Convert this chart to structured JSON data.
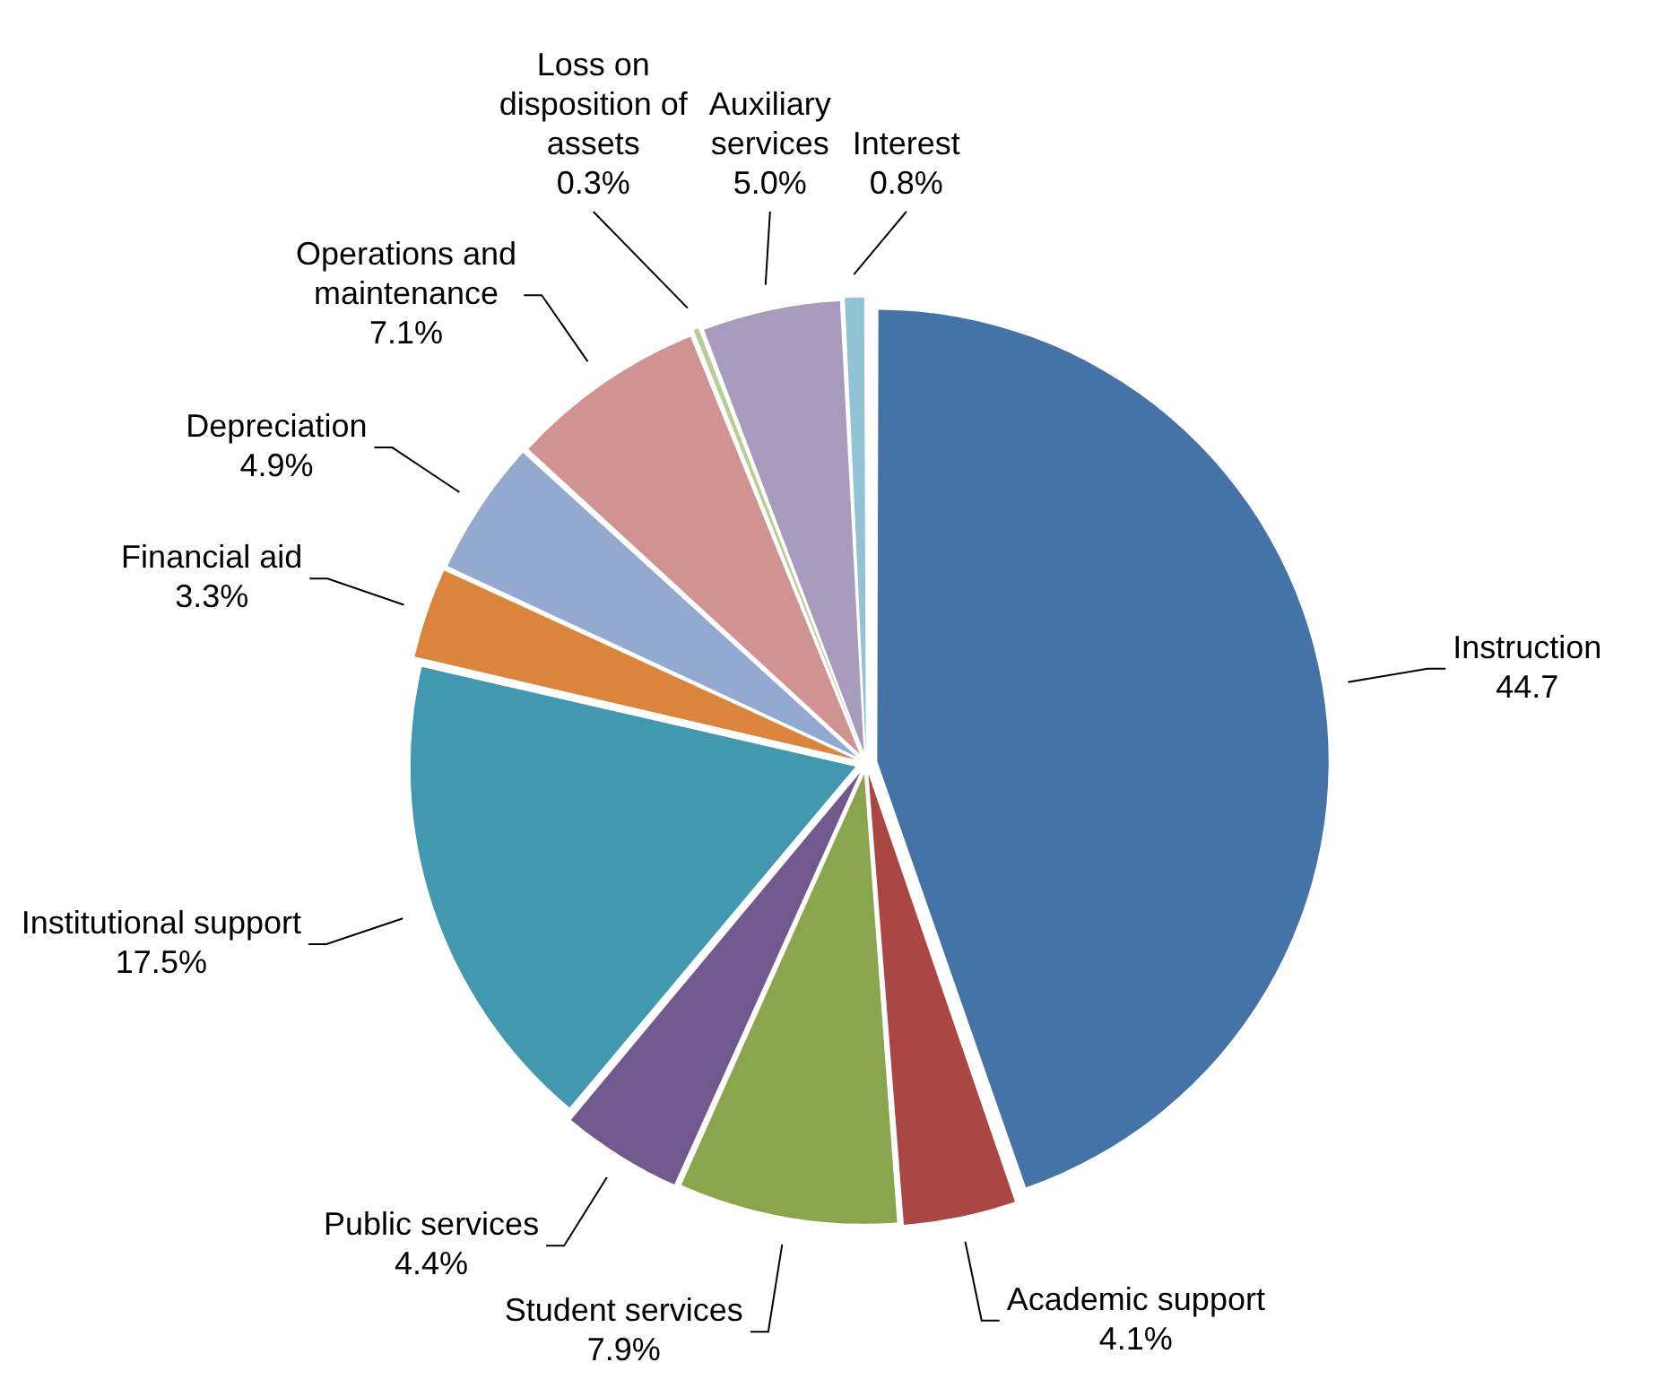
{
  "chart_data": {
    "type": "pie",
    "categories": [
      "Instruction",
      "Academic support",
      "Student services",
      "Public services",
      "Institutional support",
      "Financial aid",
      "Depreciation",
      "Operations and maintenance",
      "Loss on disposition of assets",
      "Auxiliary services",
      "Interest"
    ],
    "values": [
      44.7,
      4.1,
      7.9,
      4.4,
      17.5,
      3.3,
      4.9,
      7.1,
      0.3,
      5.0,
      0.8
    ],
    "colors": [
      "#4573a7",
      "#aa4644",
      "#89a54e",
      "#71588f",
      "#4198af",
      "#db843d",
      "#93a9cf",
      "#d19392",
      "#b9cd96",
      "#a99bbd",
      "#91c3d5"
    ],
    "value_labels": [
      "44.7",
      "4.1%",
      "7.9%",
      "4.4%",
      "17.5%",
      "3.3%",
      "4.9%",
      "7.1%",
      "0.3%",
      "5.0%",
      "0.8%"
    ],
    "legend": false
  }
}
